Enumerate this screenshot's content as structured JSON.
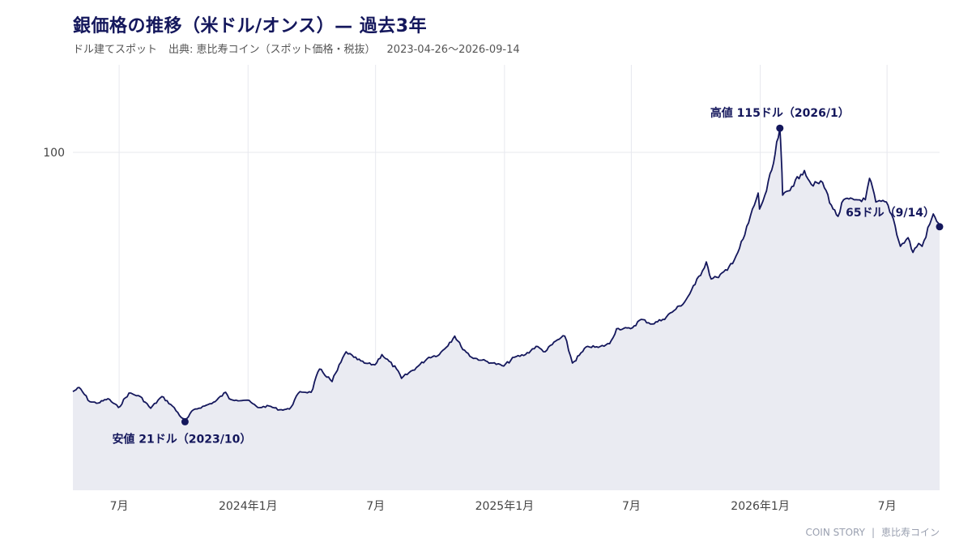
{
  "header": {
    "title": "銀価格の推移（米ドル/オンス）— 過去3年",
    "subtitle_left": "ドル建てスポット",
    "subtitle_source": "出典: 恵比寿コイン（スポット価格・税抜）",
    "subtitle_range": "2023-04-26〜2026-09-14"
  },
  "footer": {
    "brand": "COIN STORY",
    "separator": "|",
    "company": "恵比寿コイン"
  },
  "colors": {
    "line": "#14175c",
    "fill": "#eaebf2",
    "grid": "#e7e8ee",
    "axis_text": "#444444"
  },
  "chart_data": {
    "type": "area",
    "x_range": [
      "2023-04-26",
      "2026-09-14"
    ],
    "y_scale": "log",
    "y_ticks": [
      100
    ],
    "y_tick_labels": [
      "100"
    ],
    "x_ticks": [
      "2023-07-01",
      "2024-01-01",
      "2024-07-01",
      "2025-01-01",
      "2025-07-01",
      "2026-01-01",
      "2026-07-01"
    ],
    "x_tick_labels": [
      "7月",
      "2024年1月",
      "7月",
      "2025年1月",
      "7月",
      "2026年1月",
      "7月"
    ],
    "grid": true,
    "annotations": [
      {
        "label": "高値 115ドル（2026/1）",
        "date": "2026-01-29",
        "value": 115
      },
      {
        "label": "安値 21ドル（2023/10）",
        "date": "2023-10-03",
        "value": 21
      },
      {
        "label": "65ドル（9/14）",
        "date": "2026-09-14",
        "value": 65
      }
    ],
    "series": [
      {
        "points": [
          [
            "2023-04-26",
            25.0
          ],
          [
            "2023-05-05",
            25.6
          ],
          [
            "2023-05-20",
            23.6
          ],
          [
            "2023-06-01",
            23.4
          ],
          [
            "2023-06-15",
            24.0
          ],
          [
            "2023-06-30",
            22.8
          ],
          [
            "2023-07-15",
            24.8
          ],
          [
            "2023-07-31",
            24.3
          ],
          [
            "2023-08-15",
            22.7
          ],
          [
            "2023-08-31",
            24.3
          ],
          [
            "2023-09-15",
            23.0
          ],
          [
            "2023-10-03",
            21.0
          ],
          [
            "2023-10-15",
            22.5
          ],
          [
            "2023-10-31",
            23.0
          ],
          [
            "2023-11-15",
            23.6
          ],
          [
            "2023-11-30",
            24.9
          ],
          [
            "2023-12-05",
            24.0
          ],
          [
            "2023-12-15",
            23.8
          ],
          [
            "2023-12-31",
            23.8
          ],
          [
            "2024-01-15",
            22.8
          ],
          [
            "2024-01-31",
            23.0
          ],
          [
            "2024-02-15",
            22.5
          ],
          [
            "2024-02-29",
            22.6
          ],
          [
            "2024-03-15",
            25.0
          ],
          [
            "2024-03-31",
            24.9
          ],
          [
            "2024-04-12",
            28.5
          ],
          [
            "2024-04-30",
            26.5
          ],
          [
            "2024-05-20",
            31.5
          ],
          [
            "2024-05-31",
            30.5
          ],
          [
            "2024-06-15",
            29.5
          ],
          [
            "2024-06-30",
            29.2
          ],
          [
            "2024-07-10",
            31.0
          ],
          [
            "2024-07-31",
            28.5
          ],
          [
            "2024-08-07",
            27.0
          ],
          [
            "2024-08-31",
            29.0
          ],
          [
            "2024-09-15",
            30.5
          ],
          [
            "2024-09-30",
            31.0
          ],
          [
            "2024-10-22",
            34.5
          ],
          [
            "2024-10-31",
            32.5
          ],
          [
            "2024-11-15",
            30.5
          ],
          [
            "2024-11-30",
            30.0
          ],
          [
            "2024-12-15",
            29.5
          ],
          [
            "2024-12-31",
            29.0
          ],
          [
            "2025-01-15",
            30.5
          ],
          [
            "2025-01-31",
            31.0
          ],
          [
            "2025-02-15",
            32.5
          ],
          [
            "2025-02-28",
            31.5
          ],
          [
            "2025-03-15",
            33.5
          ],
          [
            "2025-03-28",
            34.5
          ],
          [
            "2025-04-08",
            29.5
          ],
          [
            "2025-04-30",
            32.5
          ],
          [
            "2025-05-15",
            32.3
          ],
          [
            "2025-05-31",
            33.0
          ],
          [
            "2025-06-10",
            36.0
          ],
          [
            "2025-06-30",
            36.0
          ],
          [
            "2025-07-15",
            38.0
          ],
          [
            "2025-07-31",
            37.0
          ],
          [
            "2025-08-15",
            38.0
          ],
          [
            "2025-08-31",
            40.0
          ],
          [
            "2025-09-15",
            42.0
          ],
          [
            "2025-09-30",
            46.5
          ],
          [
            "2025-10-16",
            53.0
          ],
          [
            "2025-10-23",
            48.0
          ],
          [
            "2025-10-31",
            48.5
          ],
          [
            "2025-11-15",
            50.5
          ],
          [
            "2025-11-30",
            56.0
          ],
          [
            "2025-12-10",
            62.0
          ],
          [
            "2025-12-29",
            79.0
          ],
          [
            "2025-12-31",
            72.0
          ],
          [
            "2026-01-10",
            80.0
          ],
          [
            "2026-01-20",
            94.0
          ],
          [
            "2026-01-29",
            115.0
          ],
          [
            "2026-01-31",
            98.0
          ],
          [
            "2026-02-02",
            78.0
          ],
          [
            "2026-02-15",
            82.0
          ],
          [
            "2026-02-28",
            88.0
          ],
          [
            "2026-03-05",
            90.0
          ],
          [
            "2026-03-15",
            83.0
          ],
          [
            "2026-03-31",
            84.0
          ],
          [
            "2026-04-15",
            72.0
          ],
          [
            "2026-04-22",
            69.0
          ],
          [
            "2026-04-30",
            76.0
          ],
          [
            "2026-05-15",
            76.0
          ],
          [
            "2026-05-31",
            76.0
          ],
          [
            "2026-06-06",
            86.0
          ],
          [
            "2026-06-15",
            75.0
          ],
          [
            "2026-06-30",
            75.0
          ],
          [
            "2026-07-10",
            68.0
          ],
          [
            "2026-07-20",
            58.0
          ],
          [
            "2026-07-31",
            61.0
          ],
          [
            "2026-08-07",
            56.0
          ],
          [
            "2026-08-15",
            59.0
          ],
          [
            "2026-08-20",
            58.0
          ],
          [
            "2026-08-31",
            66.0
          ],
          [
            "2026-09-05",
            70.0
          ],
          [
            "2026-09-10",
            67.0
          ],
          [
            "2026-09-14",
            65.0
          ]
        ]
      }
    ]
  }
}
